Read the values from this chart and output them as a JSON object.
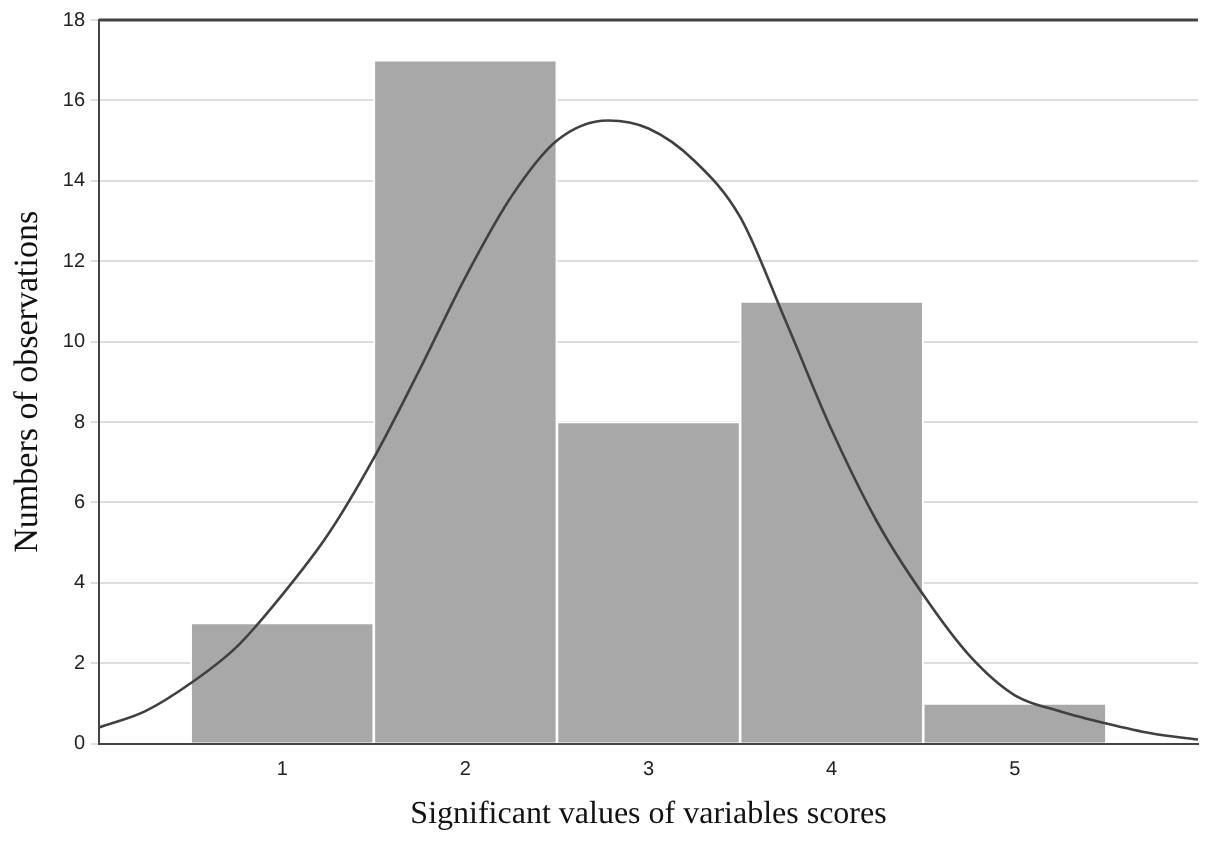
{
  "chart_data": {
    "type": "histogram",
    "xlabel": "Significant values of variables scores",
    "ylabel": "Numbers of observations",
    "bins": [
      0.5,
      1.5,
      2.5,
      3.5,
      4.5,
      5.5
    ],
    "values": [
      3,
      17,
      8,
      11,
      1
    ],
    "color": "#a8a8a8",
    "series": [
      {
        "type": "line",
        "color": "#404040",
        "x": [
          0,
          0.25,
          0.5,
          0.75,
          1,
          1.25,
          1.5,
          1.75,
          2,
          2.25,
          2.5,
          2.78,
          3,
          3.25,
          3.5,
          3.75,
          4,
          4.25,
          4.5,
          4.75,
          5,
          5.25,
          5.5,
          5.75,
          6
        ],
        "values": [
          0.4,
          0.8,
          1.5,
          2.4,
          3.7,
          5.2,
          7.1,
          9.3,
          11.6,
          13.6,
          15,
          15.5,
          15.3,
          14.5,
          13.1,
          10.5,
          7.8,
          5.5,
          3.7,
          2.2,
          1.2,
          0.8,
          0.5,
          0.25,
          0.1
        ]
      }
    ],
    "xlim": [
      0,
      6
    ],
    "xticks": [
      1,
      2,
      3,
      4,
      5
    ],
    "ylim": [
      0,
      18
    ],
    "yticks": [
      0,
      2,
      4,
      6,
      8,
      10,
      12,
      14,
      16,
      18
    ],
    "grid": "y",
    "marker": "none"
  }
}
